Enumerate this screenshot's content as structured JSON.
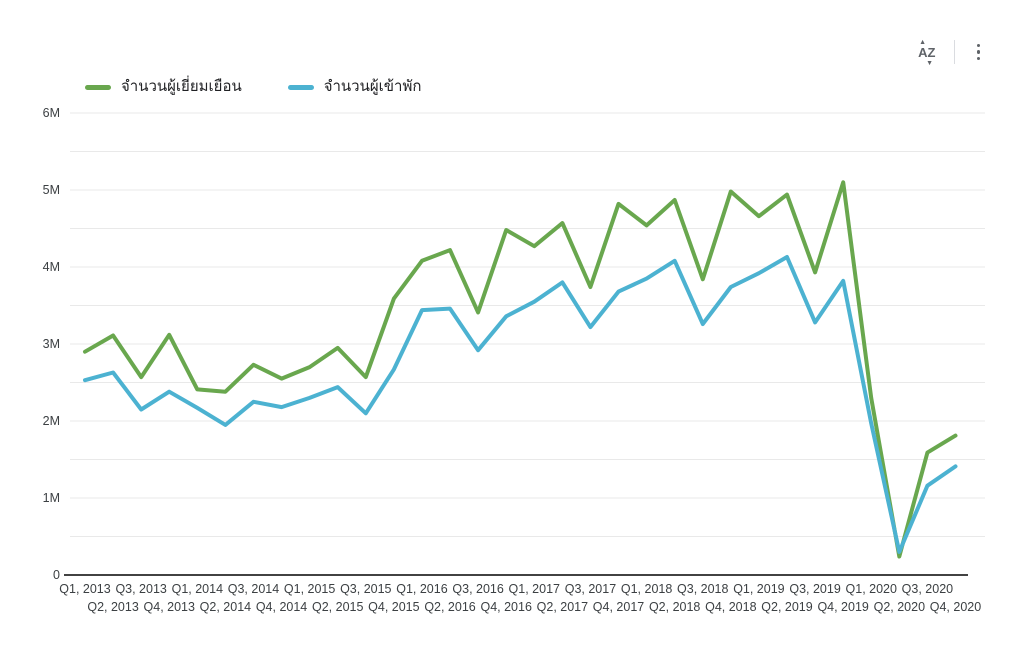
{
  "header": {
    "sort_icon": "AZ",
    "menu_icon": "kebab-vertical"
  },
  "legend": [
    {
      "label": "จำนวนผู้เยี่ยมเยือน",
      "color": "#69a74e"
    },
    {
      "label": "จำนวนผู้เข้าพัก",
      "color": "#4cb2d1"
    }
  ],
  "chart_data": {
    "type": "line",
    "title": "",
    "xlabel": "",
    "ylabel": "",
    "unit": "M",
    "ylim": [
      0,
      6
    ],
    "y_ticks": [
      "0",
      "1M",
      "2M",
      "3M",
      "4M",
      "5M",
      "6M"
    ],
    "grid": "horizontal every 0.5M",
    "legend_position": "top-left",
    "categories": [
      "Q1, 2013",
      "Q2, 2013",
      "Q3, 2013",
      "Q4, 2013",
      "Q1, 2014",
      "Q2, 2014",
      "Q3, 2014",
      "Q4, 2014",
      "Q1, 2015",
      "Q2, 2015",
      "Q3, 2015",
      "Q4, 2015",
      "Q1, 2016",
      "Q2, 2016",
      "Q3, 2016",
      "Q4, 2016",
      "Q1, 2017",
      "Q2, 2017",
      "Q3, 2017",
      "Q4, 2017",
      "Q1, 2018",
      "Q2, 2018",
      "Q3, 2018",
      "Q4, 2018",
      "Q1, 2019",
      "Q2, 2019",
      "Q3, 2019",
      "Q4, 2019",
      "Q1, 2020",
      "Q2, 2020",
      "Q3, 2020",
      "Q4, 2020"
    ],
    "series": [
      {
        "name": "จำนวนผู้เยี่ยมเยือน",
        "color": "#69a74e",
        "values": [
          2.9,
          3.11,
          2.57,
          3.12,
          2.41,
          2.38,
          2.73,
          2.55,
          2.7,
          2.95,
          2.57,
          3.59,
          4.08,
          4.22,
          3.41,
          4.48,
          4.27,
          4.57,
          3.74,
          4.82,
          4.54,
          4.87,
          3.84,
          4.98,
          4.66,
          4.94,
          3.93,
          5.1,
          2.3,
          0.24,
          1.59,
          1.81
        ]
      },
      {
        "name": "จำนวนผู้เข้าพัก",
        "color": "#4cb2d1",
        "values": [
          2.53,
          2.63,
          2.15,
          2.38,
          2.17,
          1.95,
          2.25,
          2.18,
          2.3,
          2.44,
          2.1,
          2.67,
          3.44,
          3.46,
          2.92,
          3.36,
          3.55,
          3.8,
          3.22,
          3.68,
          3.85,
          4.08,
          3.26,
          3.74,
          3.92,
          4.13,
          3.28,
          3.82,
          1.97,
          0.3,
          1.16,
          1.41
        ]
      }
    ]
  },
  "colors": {
    "gridline": "#e9e9e9",
    "axis_line": "#424242",
    "tick_label": "#3c4043",
    "icon": "#5f6368"
  }
}
